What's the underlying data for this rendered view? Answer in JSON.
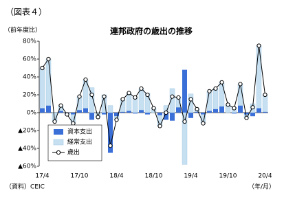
{
  "header": {
    "figure": "（図表４）",
    "unit": "（前年度比）"
  },
  "footer": {
    "source": "（資料）CEIC",
    "xunit": "（年/月）"
  },
  "chart_data": {
    "type": "bar",
    "title": "連邦政府の歳出の推移",
    "stacked": true,
    "legend": "lower left",
    "categories": [
      "17/4",
      null,
      null,
      null,
      null,
      null,
      "17/10",
      null,
      null,
      null,
      null,
      null,
      "18/4",
      null,
      null,
      null,
      null,
      null,
      "18/10",
      null,
      null,
      null,
      null,
      null,
      "19/4",
      null,
      null,
      null,
      null,
      null,
      "19/10",
      null,
      null,
      null,
      null,
      null,
      "20/4"
    ],
    "series": [
      {
        "name": "資本支出",
        "color": "#3a6fd8",
        "values": [
          5,
          8,
          0,
          2,
          -1,
          -2,
          3,
          5,
          -8,
          0,
          -2,
          -45,
          -4,
          1,
          2,
          -1,
          3,
          -2,
          0,
          -3,
          -8,
          -9,
          6,
          48,
          -6,
          1,
          -2,
          2,
          4,
          7,
          0,
          -1,
          8,
          -2,
          -4,
          5,
          1
        ]
      },
      {
        "name": "経常支出",
        "color": "#c6e0f2",
        "values": [
          45,
          52,
          -10,
          6,
          -1,
          -10,
          15,
          32,
          28,
          -5,
          20,
          8,
          -4,
          14,
          20,
          18,
          24,
          22,
          5,
          -12,
          8,
          27,
          11,
          -58,
          21,
          3,
          -10,
          22,
          23,
          27,
          9,
          6,
          24,
          -4,
          10,
          70,
          19
        ]
      },
      {
        "name": "歳出",
        "type": "line",
        "color": "#000000",
        "values": [
          50,
          60,
          -10,
          8,
          -2,
          -12,
          18,
          37,
          20,
          -5,
          18,
          -37,
          -8,
          15,
          22,
          17,
          27,
          20,
          5,
          -15,
          0,
          18,
          17,
          -10,
          15,
          4,
          -12,
          24,
          27,
          34,
          9,
          5,
          32,
          -6,
          6,
          75,
          20
        ]
      }
    ],
    "ylim": [
      -60,
      80
    ],
    "yticks": [
      {
        "value": -60,
        "label": "▲60%"
      },
      {
        "value": -40,
        "label": "▲40%"
      },
      {
        "value": -20,
        "label": "▲20%"
      },
      {
        "value": 0,
        "label": "0%"
      },
      {
        "value": 20,
        "label": "20%"
      },
      {
        "value": 40,
        "label": "40%"
      },
      {
        "value": 60,
        "label": "60%"
      },
      {
        "value": 80,
        "label": "80%"
      }
    ],
    "grid": false
  }
}
